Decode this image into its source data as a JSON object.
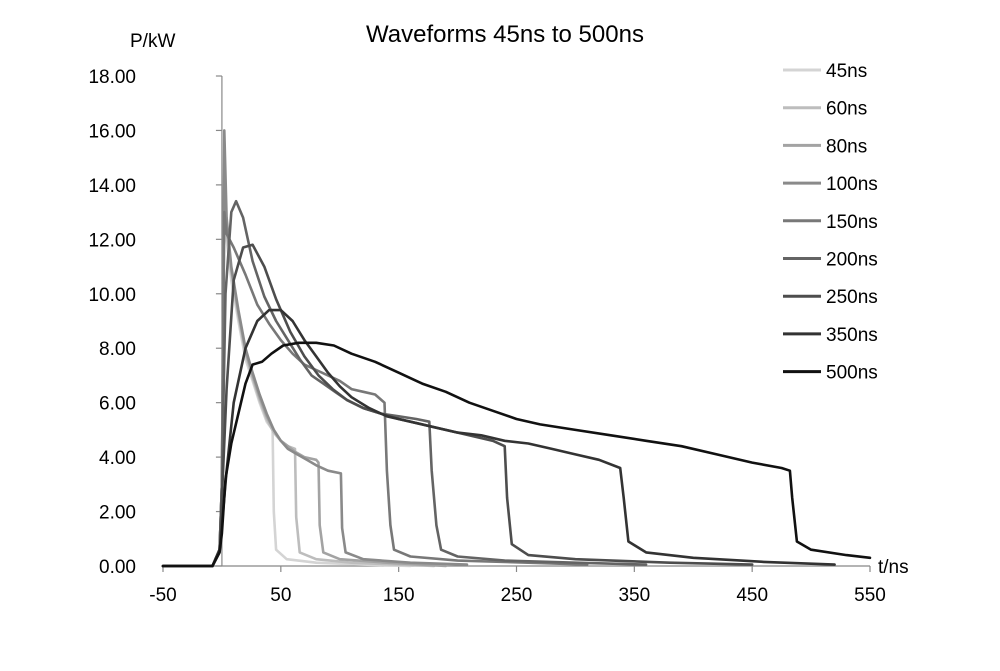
{
  "chart_data": {
    "type": "line",
    "title": "Waveforms 45ns to 500ns",
    "xlabel": "t/ns",
    "ylabel": "P/kW",
    "xlim": [
      -50,
      550
    ],
    "ylim": [
      0,
      18
    ],
    "x_ticks": [
      "-50",
      "50",
      "150",
      "250",
      "350",
      "450",
      "550"
    ],
    "y_ticks": [
      "0.00",
      "2.00",
      "4.00",
      "6.00",
      "8.00",
      "10.00",
      "12.00",
      "14.00",
      "16.00",
      "18.00"
    ],
    "grid": false,
    "legend_position": "top-right",
    "series": [
      {
        "name": "45ns",
        "color": "#d4d4d4",
        "points": [
          [
            -50,
            0
          ],
          [
            -8,
            0
          ],
          [
            -2,
            0.6
          ],
          [
            0,
            3
          ],
          [
            2,
            13.5
          ],
          [
            4,
            12
          ],
          [
            8,
            10.5
          ],
          [
            14,
            9
          ],
          [
            20,
            7.6
          ],
          [
            26,
            6.8
          ],
          [
            32,
            6
          ],
          [
            38,
            5.3
          ],
          [
            43,
            5
          ],
          [
            44,
            2
          ],
          [
            46,
            0.6
          ],
          [
            55,
            0.25
          ],
          [
            80,
            0.12
          ],
          [
            120,
            0.05
          ],
          [
            160,
            0
          ]
        ]
      },
      {
        "name": "60ns",
        "color": "#bdbdbd",
        "points": [
          [
            -50,
            0
          ],
          [
            -8,
            0
          ],
          [
            -2,
            0.6
          ],
          [
            0,
            3
          ],
          [
            2,
            14
          ],
          [
            4,
            12.4
          ],
          [
            8,
            10.8
          ],
          [
            14,
            9.2
          ],
          [
            20,
            7.8
          ],
          [
            26,
            6.9
          ],
          [
            32,
            6.1
          ],
          [
            38,
            5.4
          ],
          [
            44,
            4.9
          ],
          [
            50,
            4.6
          ],
          [
            56,
            4.4
          ],
          [
            62,
            4.3
          ],
          [
            63,
            1.8
          ],
          [
            66,
            0.5
          ],
          [
            80,
            0.25
          ],
          [
            110,
            0.12
          ],
          [
            150,
            0.05
          ],
          [
            180,
            0
          ]
        ]
      },
      {
        "name": "80ns",
        "color": "#a3a3a3",
        "points": [
          [
            -50,
            0
          ],
          [
            -8,
            0
          ],
          [
            -2,
            0.6
          ],
          [
            0,
            3
          ],
          [
            2,
            14.5
          ],
          [
            4,
            12.5
          ],
          [
            8,
            10.9
          ],
          [
            14,
            9.3
          ],
          [
            20,
            7.9
          ],
          [
            26,
            7
          ],
          [
            32,
            6.2
          ],
          [
            38,
            5.5
          ],
          [
            44,
            5
          ],
          [
            50,
            4.6
          ],
          [
            56,
            4.4
          ],
          [
            62,
            4.2
          ],
          [
            70,
            4
          ],
          [
            80,
            3.9
          ],
          [
            82,
            3.8
          ],
          [
            83,
            1.5
          ],
          [
            86,
            0.5
          ],
          [
            100,
            0.25
          ],
          [
            140,
            0.12
          ],
          [
            190,
            0
          ]
        ]
      },
      {
        "name": "100ns",
        "color": "#8a8a8a",
        "points": [
          [
            -50,
            0
          ],
          [
            -8,
            0
          ],
          [
            -2,
            0.6
          ],
          [
            0,
            3
          ],
          [
            2,
            16
          ],
          [
            4,
            12.8
          ],
          [
            8,
            11
          ],
          [
            14,
            9.4
          ],
          [
            20,
            8
          ],
          [
            26,
            7.1
          ],
          [
            32,
            6.3
          ],
          [
            38,
            5.6
          ],
          [
            44,
            5
          ],
          [
            50,
            4.6
          ],
          [
            56,
            4.3
          ],
          [
            64,
            4.1
          ],
          [
            72,
            3.9
          ],
          [
            80,
            3.7
          ],
          [
            90,
            3.5
          ],
          [
            101,
            3.4
          ],
          [
            102,
            1.4
          ],
          [
            105,
            0.5
          ],
          [
            120,
            0.25
          ],
          [
            160,
            0.12
          ],
          [
            208,
            0.05
          ]
        ]
      },
      {
        "name": "150ns",
        "color": "#787878",
        "points": [
          [
            -50,
            0
          ],
          [
            -8,
            0
          ],
          [
            -2,
            0.6
          ],
          [
            0,
            3
          ],
          [
            2,
            13
          ],
          [
            4,
            12.2
          ],
          [
            10,
            11.7
          ],
          [
            20,
            10.7
          ],
          [
            30,
            9.6
          ],
          [
            40,
            8.9
          ],
          [
            50,
            8.3
          ],
          [
            60,
            7.8
          ],
          [
            70,
            7.4
          ],
          [
            80,
            7.2
          ],
          [
            90,
            7
          ],
          [
            100,
            6.8
          ],
          [
            110,
            6.5
          ],
          [
            120,
            6.4
          ],
          [
            130,
            6.3
          ],
          [
            138,
            6
          ],
          [
            140,
            3.5
          ],
          [
            143,
            1.5
          ],
          [
            146,
            0.6
          ],
          [
            160,
            0.35
          ],
          [
            200,
            0.2
          ],
          [
            260,
            0.12
          ],
          [
            310,
            0.05
          ]
        ]
      },
      {
        "name": "200ns",
        "color": "#646464",
        "points": [
          [
            -50,
            0
          ],
          [
            -8,
            0
          ],
          [
            -2,
            0.6
          ],
          [
            0,
            3
          ],
          [
            3,
            10
          ],
          [
            8,
            13
          ],
          [
            12,
            13.4
          ],
          [
            18,
            12.8
          ],
          [
            26,
            11.2
          ],
          [
            36,
            9.9
          ],
          [
            46,
            9
          ],
          [
            56,
            8.3
          ],
          [
            66,
            7.6
          ],
          [
            76,
            7
          ],
          [
            86,
            6.7
          ],
          [
            96,
            6.4
          ],
          [
            106,
            6.1
          ],
          [
            120,
            5.8
          ],
          [
            135,
            5.6
          ],
          [
            150,
            5.5
          ],
          [
            165,
            5.4
          ],
          [
            176,
            5.3
          ],
          [
            178,
            3.5
          ],
          [
            182,
            1.5
          ],
          [
            186,
            0.6
          ],
          [
            200,
            0.35
          ],
          [
            240,
            0.2
          ],
          [
            300,
            0.12
          ],
          [
            360,
            0.05
          ]
        ]
      },
      {
        "name": "250ns",
        "color": "#4d4d4d",
        "points": [
          [
            -50,
            0
          ],
          [
            -8,
            0
          ],
          [
            -2,
            0.6
          ],
          [
            0,
            2.5
          ],
          [
            4,
            6.5
          ],
          [
            10,
            10.5
          ],
          [
            18,
            11.7
          ],
          [
            26,
            11.8
          ],
          [
            36,
            11
          ],
          [
            46,
            9.8
          ],
          [
            58,
            8.6
          ],
          [
            70,
            7.7
          ],
          [
            82,
            7
          ],
          [
            94,
            6.5
          ],
          [
            106,
            6.1
          ],
          [
            120,
            5.8
          ],
          [
            135,
            5.6
          ],
          [
            150,
            5.4
          ],
          [
            170,
            5.2
          ],
          [
            190,
            5
          ],
          [
            210,
            4.8
          ],
          [
            230,
            4.6
          ],
          [
            240,
            4.4
          ],
          [
            242,
            2.5
          ],
          [
            246,
            0.8
          ],
          [
            260,
            0.4
          ],
          [
            300,
            0.25
          ],
          [
            380,
            0.12
          ],
          [
            450,
            0.05
          ]
        ]
      },
      {
        "name": "350ns",
        "color": "#333333",
        "points": [
          [
            -50,
            0
          ],
          [
            -8,
            0
          ],
          [
            -2,
            0.6
          ],
          [
            0,
            1.5
          ],
          [
            4,
            3.5
          ],
          [
            10,
            6
          ],
          [
            20,
            8
          ],
          [
            30,
            9
          ],
          [
            40,
            9.4
          ],
          [
            50,
            9.4
          ],
          [
            60,
            9
          ],
          [
            70,
            8.3
          ],
          [
            80,
            7.7
          ],
          [
            90,
            7.1
          ],
          [
            100,
            6.6
          ],
          [
            110,
            6.2
          ],
          [
            125,
            5.8
          ],
          [
            140,
            5.5
          ],
          [
            160,
            5.3
          ],
          [
            180,
            5.1
          ],
          [
            200,
            4.9
          ],
          [
            220,
            4.8
          ],
          [
            240,
            4.6
          ],
          [
            260,
            4.5
          ],
          [
            280,
            4.3
          ],
          [
            300,
            4.1
          ],
          [
            320,
            3.9
          ],
          [
            338,
            3.6
          ],
          [
            341,
            2.5
          ],
          [
            345,
            0.9
          ],
          [
            360,
            0.5
          ],
          [
            400,
            0.3
          ],
          [
            460,
            0.15
          ],
          [
            520,
            0.05
          ]
        ]
      },
      {
        "name": "500ns",
        "color": "#111111",
        "points": [
          [
            -50,
            0
          ],
          [
            -8,
            0
          ],
          [
            -2,
            0.5
          ],
          [
            0,
            1.2
          ],
          [
            3,
            3.2
          ],
          [
            8,
            4.5
          ],
          [
            14,
            5.6
          ],
          [
            20,
            6.7
          ],
          [
            26,
            7.4
          ],
          [
            34,
            7.5
          ],
          [
            42,
            7.8
          ],
          [
            52,
            8.1
          ],
          [
            65,
            8.2
          ],
          [
            80,
            8.2
          ],
          [
            95,
            8.1
          ],
          [
            110,
            7.8
          ],
          [
            130,
            7.5
          ],
          [
            150,
            7.1
          ],
          [
            170,
            6.7
          ],
          [
            190,
            6.4
          ],
          [
            210,
            6
          ],
          [
            230,
            5.7
          ],
          [
            250,
            5.4
          ],
          [
            270,
            5.2
          ],
          [
            300,
            5
          ],
          [
            330,
            4.8
          ],
          [
            360,
            4.6
          ],
          [
            390,
            4.4
          ],
          [
            420,
            4.1
          ],
          [
            450,
            3.8
          ],
          [
            475,
            3.6
          ],
          [
            482,
            3.5
          ],
          [
            484,
            2.5
          ],
          [
            488,
            0.9
          ],
          [
            500,
            0.6
          ],
          [
            530,
            0.4
          ],
          [
            550,
            0.3
          ]
        ]
      }
    ]
  }
}
